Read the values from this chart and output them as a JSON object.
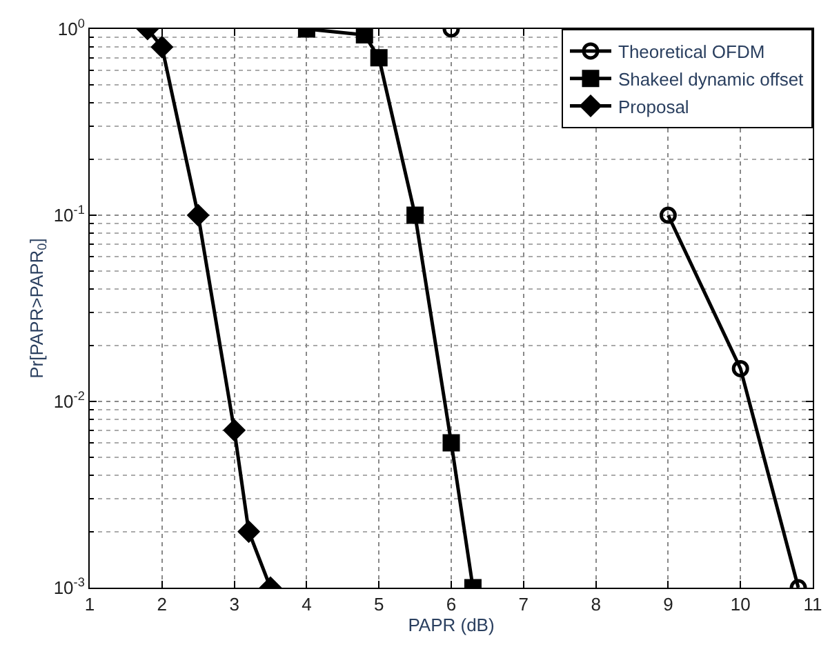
{
  "chart_data": {
    "type": "line",
    "xlabel": "PAPR (dB)",
    "ylabel": "Pr[PAPR>PAPR$_{0}$]",
    "series": [
      {
        "name": "Theoretical OFDM",
        "color": "#000000",
        "marker": "circle",
        "x": [
          6,
          7,
          8,
          9,
          10,
          10.8
        ],
        "values": [
          1,
          null,
          null,
          0.1,
          0.015,
          0.001
        ]
      },
      {
        "name": "Shakeel dynamic offset",
        "color": "#000000",
        "marker": "square",
        "x": [
          4,
          4.8,
          5,
          5.5,
          6,
          6.3
        ],
        "values": [
          1,
          0.93,
          0.7,
          0.1,
          0.006,
          0.001
        ]
      },
      {
        "name": "Proposal",
        "color": "#000000",
        "marker": "diamond",
        "x": [
          1.8,
          2,
          2.5,
          3,
          3.2,
          3.5
        ],
        "values": [
          1,
          0.8,
          0.1,
          0.007,
          0.002,
          0.001
        ]
      }
    ],
    "log": "y",
    "xlim": [
      1,
      11
    ],
    "xticks": [
      1,
      2,
      3,
      4,
      5,
      6,
      7,
      8,
      9,
      10,
      11
    ],
    "ylim": [
      0.001,
      1
    ],
    "yticks": [
      {
        "value": 0.001,
        "label": "10$^{-3}$"
      },
      {
        "value": 0.01,
        "label": "10$^{-2}$"
      },
      {
        "value": 0.1,
        "label": "10$^{-1}$"
      },
      {
        "value": 1,
        "label": "10$^{0}$"
      }
    ],
    "grid": true,
    "legend": "top right",
    "line_style": "solid"
  }
}
